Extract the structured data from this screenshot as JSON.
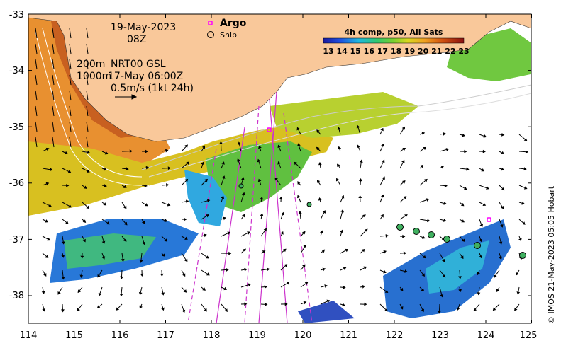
{
  "map": {
    "date": "19-May-2023",
    "time": "08Z",
    "depth_line1": "200m",
    "depth_line2": "1000m",
    "product": "NRT00 GSL",
    "altimetry_time": "17-May 06:00Z",
    "vector_scale": "0.5m/s (1kt 24h)",
    "legend_argo": "Argo",
    "legend_ship": "Ship",
    "colorbar_title": "4h comp, p50, All Sats",
    "colorbar_ticks": [
      "13",
      "14",
      "15",
      "16",
      "17",
      "18",
      "19",
      "20",
      "21",
      "22",
      "23"
    ],
    "credit": "© IMOS 21-May-2023 05:05 Hobart",
    "lon_ticks": [
      "114",
      "115",
      "116",
      "117",
      "118",
      "119",
      "120",
      "121",
      "122",
      "123",
      "124",
      "125"
    ],
    "lat_ticks": [
      "-33",
      "-34",
      "-35",
      "-36",
      "-37",
      "-38"
    ],
    "land_color": "#f9c89a",
    "argo_color": "#ff00ff",
    "track_color": "#cc33cc"
  }
}
